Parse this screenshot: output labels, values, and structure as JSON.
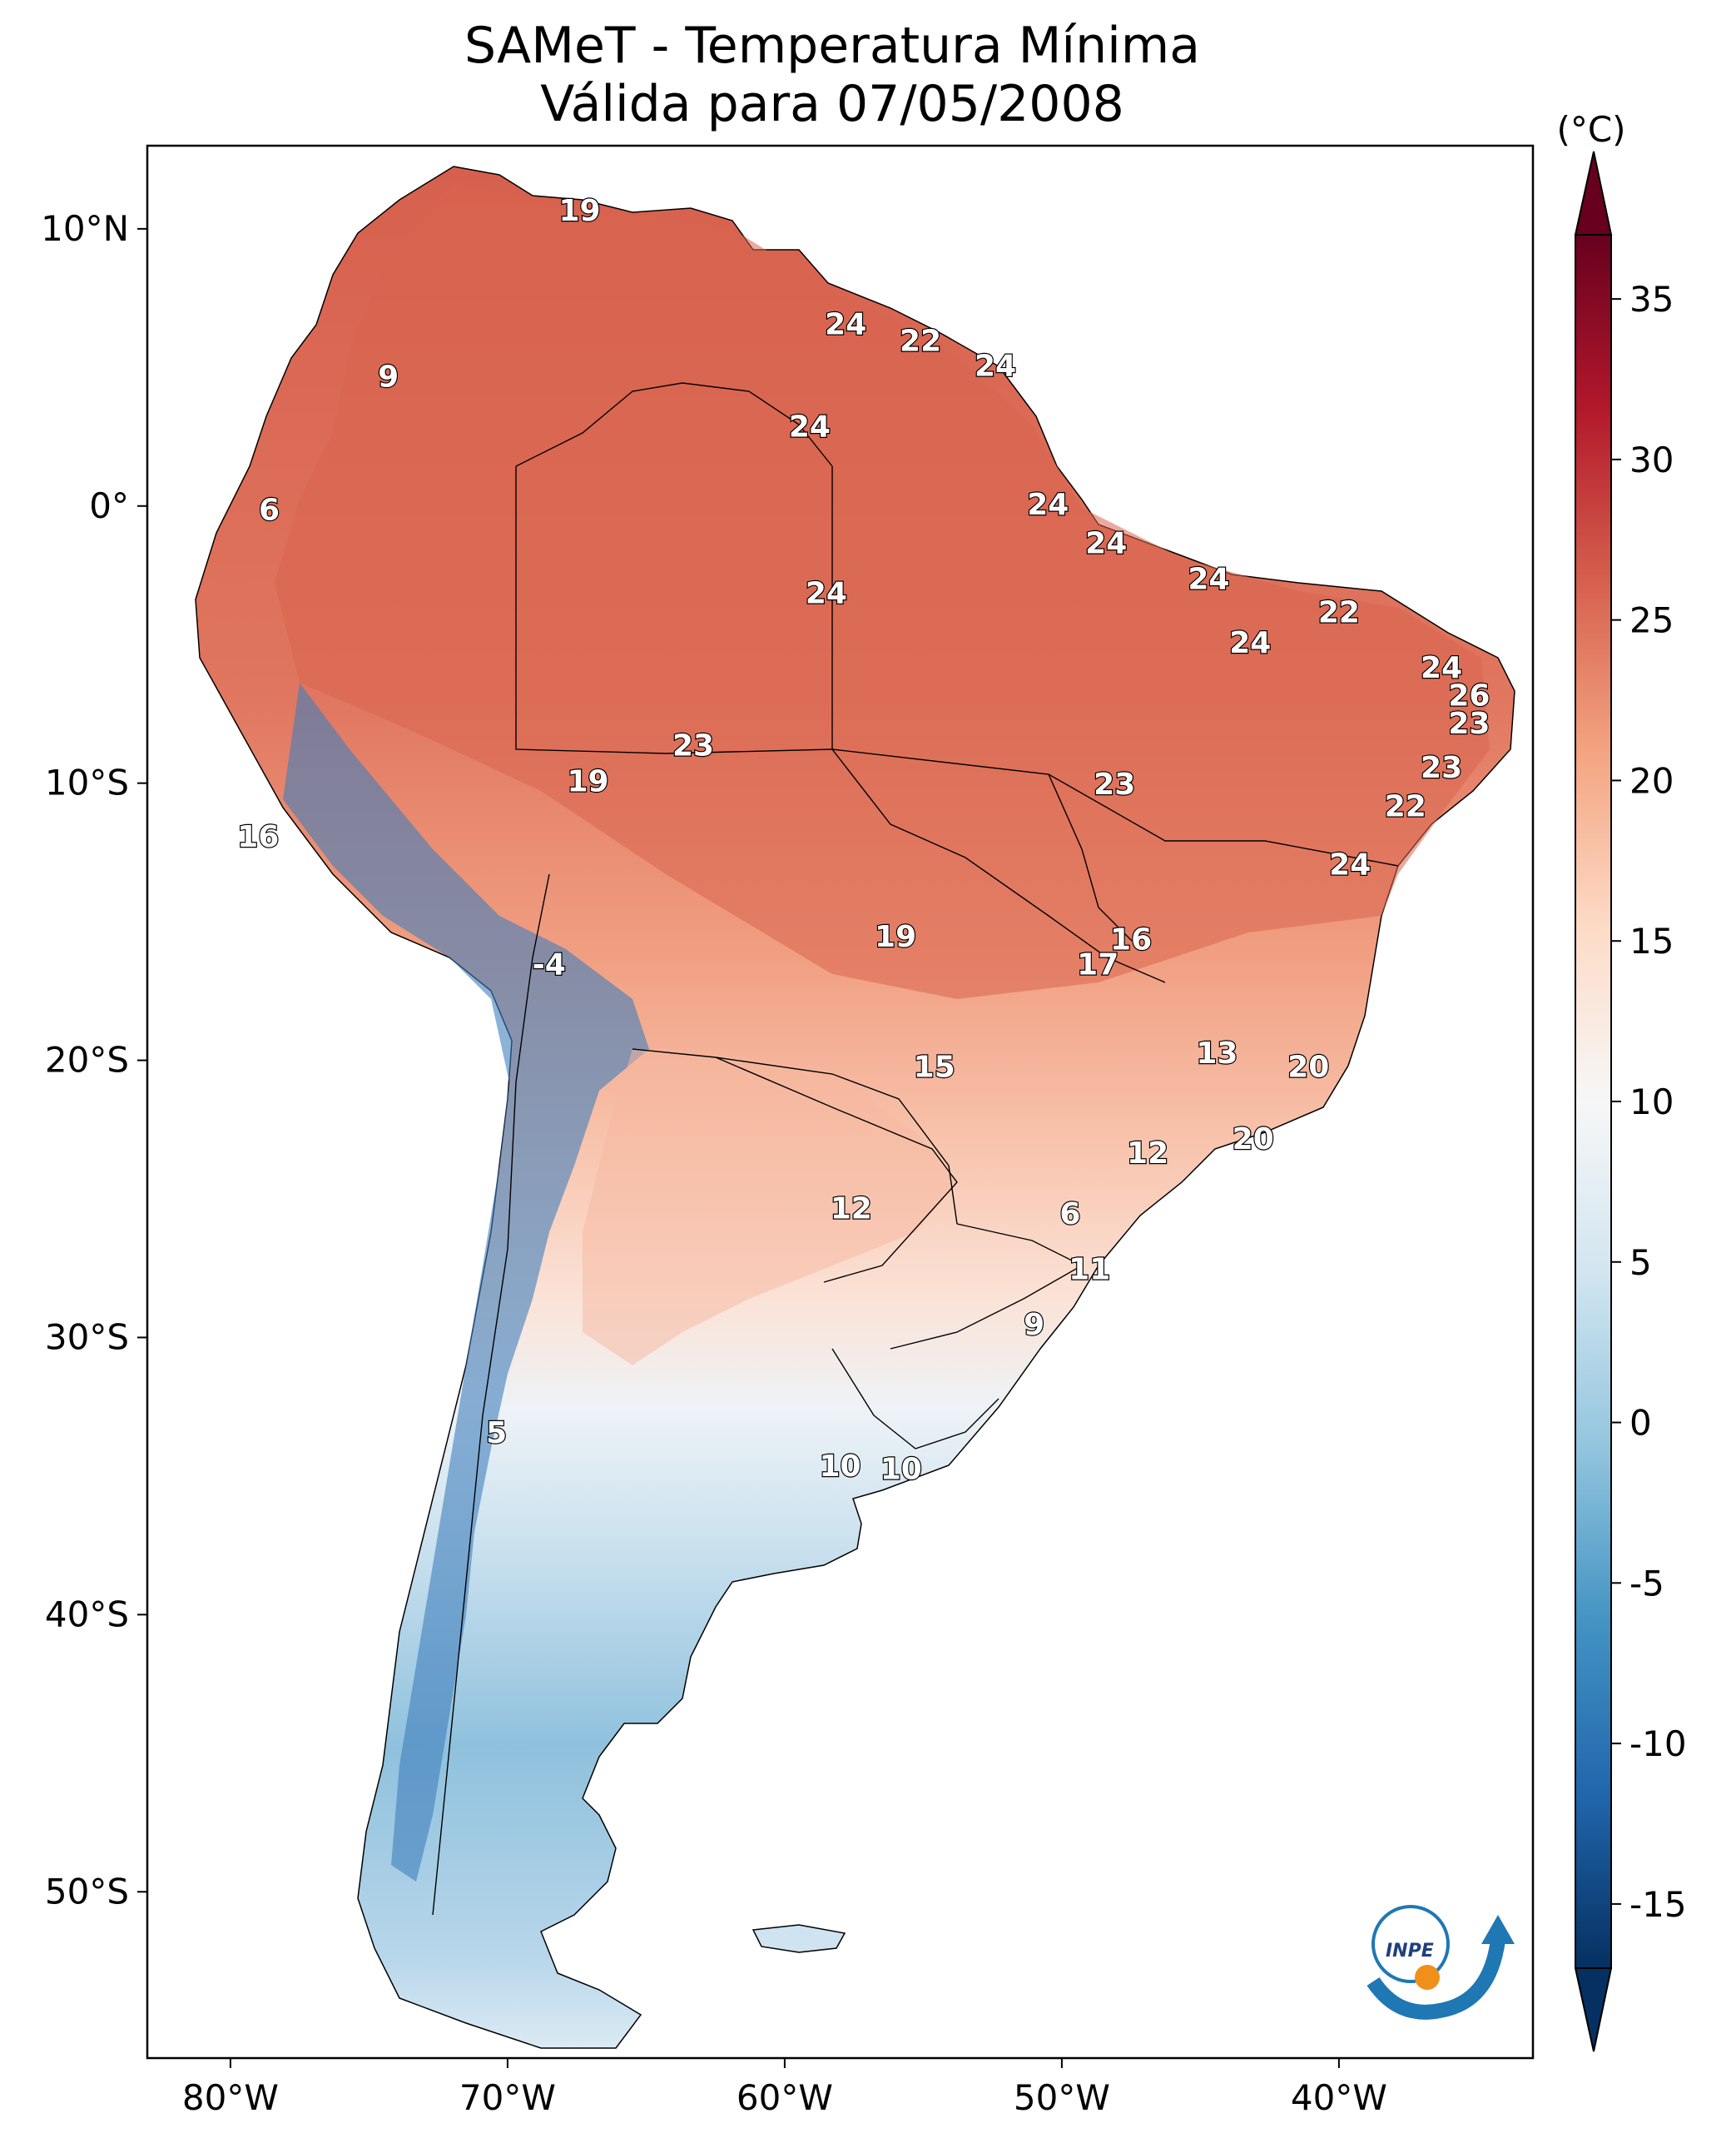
{
  "title": {
    "line1": "SAMeT - Temperatura Mínima",
    "line2": "Válida para 07/05/2008"
  },
  "map": {
    "lon_range": [
      -83,
      -33
    ],
    "lat_range": [
      -56,
      13
    ],
    "x_ticks": [
      {
        "lon": -80,
        "label": "80°W"
      },
      {
        "lon": -70,
        "label": "70°W"
      },
      {
        "lon": -60,
        "label": "60°W"
      },
      {
        "lon": -50,
        "label": "50°W"
      },
      {
        "lon": -40,
        "label": "40°W"
      }
    ],
    "y_ticks": [
      {
        "lat": 10,
        "label": "10°N"
      },
      {
        "lat": 0,
        "label": "0°"
      },
      {
        "lat": -10,
        "label": "10°S"
      },
      {
        "lat": -20,
        "label": "20°S"
      },
      {
        "lat": -30,
        "label": "30°S"
      },
      {
        "lat": -40,
        "label": "40°S"
      },
      {
        "lat": -50,
        "label": "50°S"
      }
    ],
    "contour_labels": [
      {
        "lon": -67.4,
        "lat": 10.6,
        "value": "19"
      },
      {
        "lon": -57.8,
        "lat": 6.5,
        "value": "24"
      },
      {
        "lon": -55.1,
        "lat": 5.9,
        "value": "22"
      },
      {
        "lon": -52.4,
        "lat": 5.0,
        "value": "24"
      },
      {
        "lon": -74.3,
        "lat": 4.6,
        "value": "9"
      },
      {
        "lon": -59.1,
        "lat": 2.8,
        "value": "24"
      },
      {
        "lon": -78.6,
        "lat": -0.2,
        "value": "6"
      },
      {
        "lon": -50.5,
        "lat": 0.0,
        "value": "24"
      },
      {
        "lon": -48.4,
        "lat": -1.4,
        "value": "24"
      },
      {
        "lon": -58.5,
        "lat": -3.2,
        "value": "24"
      },
      {
        "lon": -44.7,
        "lat": -2.7,
        "value": "24"
      },
      {
        "lon": -40.0,
        "lat": -3.9,
        "value": "22"
      },
      {
        "lon": -43.2,
        "lat": -5.0,
        "value": "24"
      },
      {
        "lon": -36.3,
        "lat": -5.9,
        "value": "24"
      },
      {
        "lon": -35.3,
        "lat": -6.9,
        "value": "26"
      },
      {
        "lon": -35.3,
        "lat": -7.9,
        "value": "23"
      },
      {
        "lon": -36.3,
        "lat": -9.5,
        "value": "23"
      },
      {
        "lon": -63.3,
        "lat": -8.7,
        "value": "23"
      },
      {
        "lon": -67.1,
        "lat": -10.0,
        "value": "19"
      },
      {
        "lon": -48.1,
        "lat": -10.1,
        "value": "23"
      },
      {
        "lon": -37.6,
        "lat": -10.9,
        "value": "22"
      },
      {
        "lon": -79.0,
        "lat": -12.0,
        "value": "16"
      },
      {
        "lon": -39.6,
        "lat": -13.0,
        "value": "24"
      },
      {
        "lon": -56.0,
        "lat": -15.6,
        "value": "19"
      },
      {
        "lon": -47.5,
        "lat": -15.7,
        "value": "16"
      },
      {
        "lon": -48.7,
        "lat": -16.6,
        "value": "17"
      },
      {
        "lon": -68.5,
        "lat": -16.6,
        "value": "-4"
      },
      {
        "lon": -44.4,
        "lat": -19.8,
        "value": "13"
      },
      {
        "lon": -41.1,
        "lat": -20.3,
        "value": "20"
      },
      {
        "lon": -54.6,
        "lat": -20.3,
        "value": "15"
      },
      {
        "lon": -43.1,
        "lat": -22.9,
        "value": "20"
      },
      {
        "lon": -46.9,
        "lat": -23.4,
        "value": "12"
      },
      {
        "lon": -57.6,
        "lat": -25.4,
        "value": "12"
      },
      {
        "lon": -49.7,
        "lat": -25.6,
        "value": "6"
      },
      {
        "lon": -49.0,
        "lat": -27.6,
        "value": "11"
      },
      {
        "lon": -51.0,
        "lat": -29.6,
        "value": "9"
      },
      {
        "lon": -70.4,
        "lat": -33.5,
        "value": "5"
      },
      {
        "lon": -58.0,
        "lat": -34.7,
        "value": "10"
      },
      {
        "lon": -55.8,
        "lat": -34.8,
        "value": "10"
      }
    ]
  },
  "colorbar": {
    "unit": "(°C)",
    "min": -17,
    "max": 37,
    "ticks": [
      {
        "value": 35,
        "label": "35"
      },
      {
        "value": 30,
        "label": "30"
      },
      {
        "value": 25,
        "label": "25"
      },
      {
        "value": 20,
        "label": "20"
      },
      {
        "value": 15,
        "label": "15"
      },
      {
        "value": 10,
        "label": "10"
      },
      {
        "value": 5,
        "label": "5"
      },
      {
        "value": 0,
        "label": "0"
      },
      {
        "value": -5,
        "label": "-5"
      },
      {
        "value": -10,
        "label": "-10"
      },
      {
        "value": -15,
        "label": "-15"
      }
    ],
    "colors": [
      "#053061",
      "#2166ac",
      "#4393c3",
      "#92c5de",
      "#d1e5f0",
      "#f7f7f7",
      "#fddbc7",
      "#f4a582",
      "#d6604d",
      "#b2182b",
      "#67001f"
    ]
  },
  "logo": {
    "text": "INPE"
  }
}
